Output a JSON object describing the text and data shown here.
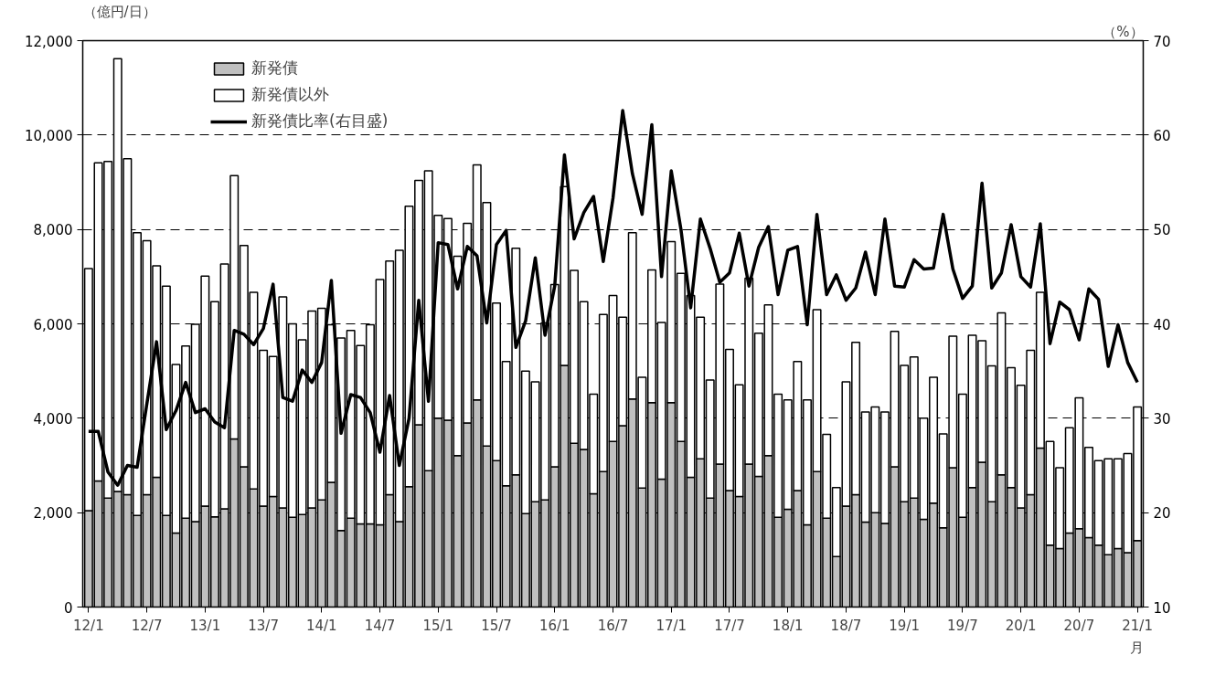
{
  "chart_data": {
    "type": "bar",
    "stacked": true,
    "xlabel": "月",
    "ylabel": "（億円/日）",
    "y2label": "（%）",
    "categories": [
      "12/1",
      null,
      null,
      null,
      null,
      null,
      "12/7",
      null,
      null,
      null,
      null,
      null,
      "13/1",
      null,
      null,
      null,
      null,
      null,
      "13/7",
      null,
      null,
      null,
      null,
      null,
      "14/1",
      null,
      null,
      null,
      null,
      null,
      "14/7",
      null,
      null,
      null,
      null,
      null,
      "15/1",
      null,
      null,
      null,
      null,
      null,
      "15/7",
      null,
      null,
      null,
      null,
      null,
      "16/1",
      null,
      null,
      null,
      null,
      null,
      "16/7",
      null,
      null,
      null,
      null,
      null,
      "17/1",
      null,
      null,
      null,
      null,
      null,
      "17/7",
      null,
      null,
      null,
      null,
      null,
      "18/1",
      null,
      null,
      null,
      null,
      null,
      "18/7",
      null,
      null,
      null,
      null,
      null,
      "19/1",
      null,
      null,
      null,
      null,
      null,
      "19/7",
      null,
      null,
      null,
      null,
      null,
      "20/1",
      null,
      null,
      null,
      null,
      null,
      "20/7",
      null,
      null,
      null,
      null,
      null,
      "21/1"
    ],
    "series": [
      {
        "name": "新発債",
        "color": "#c0c0c0",
        "values": [
          2040,
          2670,
          2310,
          2450,
          2380,
          1940,
          2380,
          2750,
          1940,
          1570,
          1880,
          1810,
          2140,
          1910,
          2080,
          3560,
          2970,
          2500,
          2140,
          2340,
          2100,
          1900,
          1960,
          2100,
          2270,
          2640,
          1620,
          1880,
          1760,
          1760,
          1740,
          2380,
          1810,
          2550,
          3860,
          2890,
          4000,
          3960,
          3210,
          3900,
          4390,
          3410,
          3100,
          2570,
          2800,
          1980,
          2230,
          2270,
          2970,
          5120,
          3470,
          3340,
          2400,
          2870,
          3510,
          3840,
          4410,
          2520,
          4330,
          2710,
          4330,
          3510,
          2750,
          3140,
          2310,
          3030,
          2470,
          2340,
          3030,
          2770,
          3210,
          1900,
          2070,
          2470,
          1740,
          2870,
          1880,
          1070,
          2140,
          2380,
          1800,
          2000,
          1770,
          2970,
          2230,
          2310,
          1860,
          2200,
          1680,
          2950,
          1900,
          2530,
          3070,
          2230,
          2800,
          2530,
          2100,
          2380,
          3370,
          1310,
          1240,
          1570,
          1660,
          1470,
          1310,
          1110,
          1240,
          1150,
          1410
        ]
      },
      {
        "name": "新発債以外",
        "color": "#ffffff",
        "values": [
          5130,
          6740,
          7130,
          9170,
          7120,
          5990,
          5380,
          4480,
          4860,
          3570,
          3650,
          4180,
          4870,
          4560,
          5190,
          5580,
          4690,
          4170,
          3300,
          2970,
          4470,
          4100,
          3700,
          4170,
          4060,
          3340,
          4080,
          3980,
          3780,
          4220,
          5200,
          4950,
          5750,
          5940,
          5180,
          6350,
          4300,
          4270,
          4220,
          4230,
          4980,
          5160,
          3340,
          2630,
          4800,
          3020,
          2540,
          3750,
          3860,
          3790,
          3660,
          3130,
          2110,
          3330,
          3090,
          2300,
          3520,
          2350,
          2810,
          3320,
          3410,
          3560,
          3850,
          3000,
          2500,
          3810,
          2990,
          2370,
          3940,
          3030,
          3190,
          2610,
          2320,
          2730,
          2650,
          3430,
          1780,
          1460,
          2630,
          3230,
          2330,
          2240,
          2360,
          2870,
          2890,
          2990,
          2140,
          2670,
          1990,
          2790,
          2610,
          3230,
          2570,
          2880,
          3430,
          2540,
          2600,
          3060,
          3300,
          2200,
          1710,
          2230,
          2770,
          1910,
          1790,
          2030,
          1900,
          2100,
          2830
        ]
      },
      {
        "name": "新発債比率(右目盛)",
        "type": "line",
        "axis": "y2",
        "color": "#000000",
        "values": [
          28.6,
          28.6,
          24.3,
          22.9,
          25.0,
          24.8,
          31.5,
          38.1,
          28.8,
          30.8,
          33.8,
          30.6,
          31.0,
          29.6,
          29.0,
          39.3,
          38.9,
          37.8,
          39.5,
          44.2,
          32.2,
          31.8,
          35.1,
          33.8,
          35.9,
          44.6,
          28.4,
          32.5,
          32.2,
          30.6,
          26.4,
          32.4,
          25.0,
          30.0,
          42.5,
          31.8,
          48.6,
          48.4,
          43.7,
          48.2,
          47.2,
          40.1,
          48.4,
          49.9,
          37.5,
          40.3,
          47.0,
          38.8,
          44.0,
          57.9,
          49.0,
          51.8,
          53.5,
          46.6,
          53.3,
          62.6,
          55.9,
          51.6,
          61.1,
          45.0,
          56.2,
          50.0,
          41.7,
          51.1,
          48.0,
          44.4,
          45.4,
          49.6,
          44.0,
          48.1,
          50.3,
          43.1,
          47.8,
          48.2,
          39.9,
          51.6,
          43.1,
          45.2,
          42.5,
          43.8,
          47.6,
          43.1,
          51.1,
          44.0,
          43.9,
          46.8,
          45.8,
          45.9,
          51.6,
          45.8,
          42.7,
          44.0,
          54.9,
          43.8,
          45.4,
          50.5,
          45.0,
          43.9,
          50.6,
          37.9,
          42.3,
          41.5,
          38.3,
          43.7,
          42.6,
          35.5,
          39.9,
          35.9,
          33.8
        ]
      }
    ],
    "ylim": [
      0,
      12000
    ],
    "yticks": [
      0,
      {
        "value": 2000,
        "label": "2,000"
      },
      {
        "value": 4000,
        "label": "4,000"
      },
      {
        "value": 6000,
        "label": "6,000"
      },
      {
        "value": 8000,
        "label": "8,000"
      },
      {
        "value": 10000,
        "label": "10,000"
      },
      {
        "value": 12000,
        "label": "12,000"
      }
    ],
    "y2lim": [
      10,
      70
    ],
    "y2ticks": [
      10,
      20,
      30,
      40,
      50,
      60,
      70
    ],
    "grid": "y",
    "legend": "top left",
    "line_style": "solid",
    "marker": "none"
  }
}
